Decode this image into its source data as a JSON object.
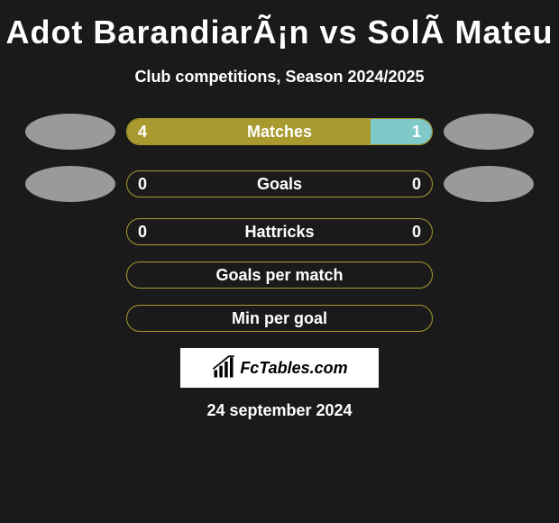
{
  "title": "Adot BarandiarÃ¡n vs SolÃ  Mateu",
  "subtitle": "Club competitions, Season 2024/2025",
  "date": "24 september 2024",
  "colors": {
    "bar_border": "#a89a2e",
    "bar_fill_left": "#a89a2e",
    "bar_fill_right": "#7fc9c9",
    "text": "#ffffff"
  },
  "logo": {
    "text": "FcTables.com"
  },
  "stats": [
    {
      "label": "Matches",
      "left_value": "4",
      "right_value": "1",
      "left_pct": 80,
      "right_pct": 20,
      "show_avatars": true
    },
    {
      "label": "Goals",
      "left_value": "0",
      "right_value": "0",
      "left_pct": 0,
      "right_pct": 0,
      "show_avatars": true
    },
    {
      "label": "Hattricks",
      "left_value": "0",
      "right_value": "0",
      "left_pct": 0,
      "right_pct": 0,
      "show_avatars": false
    },
    {
      "label": "Goals per match",
      "left_value": "",
      "right_value": "",
      "left_pct": 0,
      "right_pct": 0,
      "show_avatars": false
    },
    {
      "label": "Min per goal",
      "left_value": "",
      "right_value": "",
      "left_pct": 0,
      "right_pct": 0,
      "show_avatars": false
    }
  ]
}
